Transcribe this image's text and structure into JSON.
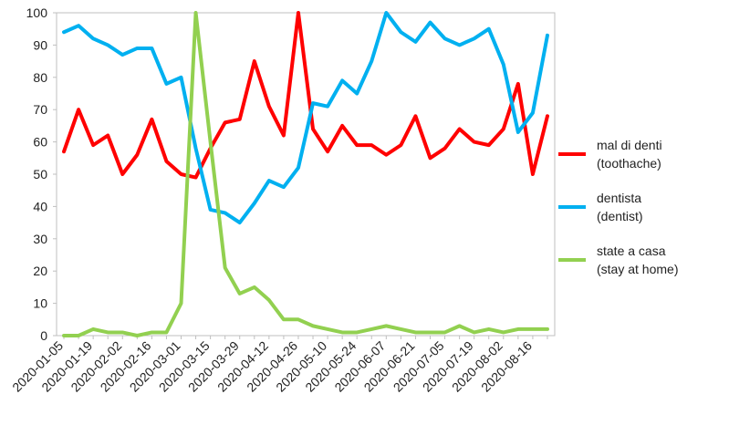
{
  "chart_data": {
    "type": "line",
    "categories": [
      "2020-01-05",
      null,
      "2020-01-19",
      null,
      "2020-02-02",
      null,
      "2020-02-16",
      null,
      "2020-03-01",
      null,
      "2020-03-15",
      null,
      "2020-03-29",
      null,
      "2020-04-12",
      null,
      "2020-04-26",
      null,
      "2020-05-10",
      null,
      "2020-05-24",
      null,
      "2020-06-07",
      null,
      "2020-06-21",
      null,
      "2020-07-05",
      null,
      "2020-07-19",
      null,
      "2020-08-02",
      null,
      "2020-08-16",
      null
    ],
    "series": [
      {
        "name": "mal di denti\n(toothache)",
        "color": "#ff0000",
        "values": [
          57,
          70,
          59,
          62,
          50,
          56,
          67,
          54,
          50,
          49,
          58,
          66,
          67,
          85,
          71,
          62,
          100,
          64,
          57,
          65,
          59,
          59,
          56,
          59,
          68,
          55,
          58,
          64,
          60,
          59,
          64,
          78,
          50,
          68
        ]
      },
      {
        "name": "dentista\n(dentist)",
        "color": "#00b0f0",
        "values": [
          94,
          96,
          92,
          90,
          87,
          89,
          89,
          78,
          80,
          58,
          39,
          38,
          35,
          41,
          48,
          46,
          52,
          72,
          71,
          79,
          75,
          85,
          100,
          94,
          91,
          97,
          92,
          90,
          92,
          95,
          84,
          63,
          69,
          93
        ]
      },
      {
        "name": "state a casa\n(stay at home)",
        "color": "#92d050",
        "values": [
          0,
          0,
          2,
          1,
          1,
          0,
          1,
          1,
          10,
          100,
          60,
          21,
          13,
          15,
          11,
          5,
          5,
          3,
          2,
          1,
          1,
          2,
          3,
          2,
          1,
          1,
          1,
          3,
          1,
          2,
          1,
          2,
          2,
          2
        ]
      }
    ],
    "ylim": [
      0,
      100
    ],
    "yticks": [
      0,
      10,
      20,
      30,
      40,
      50,
      60,
      70,
      80,
      90,
      100
    ],
    "grid": false,
    "legend": "right"
  }
}
